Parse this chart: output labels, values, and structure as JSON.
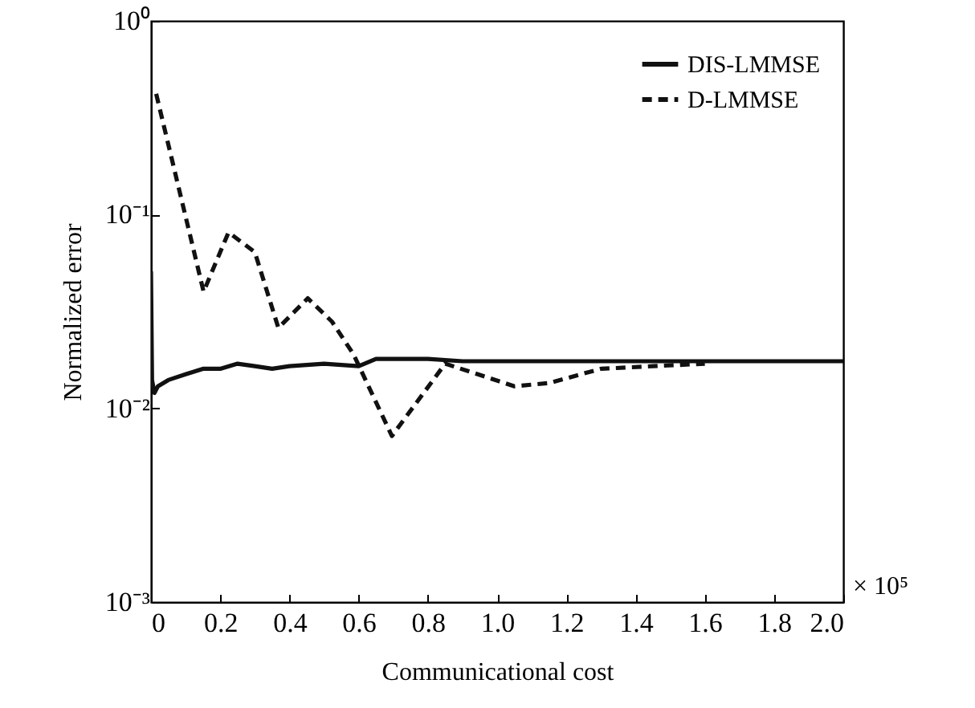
{
  "chart_data": {
    "type": "line",
    "xlabel": "Communicational cost",
    "ylabel": "Normalized error",
    "log": "y",
    "xlim": [
      0,
      2
    ],
    "ylim": [
      0.001,
      1
    ],
    "xticks": [
      0,
      0.2,
      0.4,
      0.6,
      0.8,
      {
        "value": 1,
        "label": "1.0"
      },
      1.2,
      1.4,
      1.6,
      1.8,
      {
        "value": 2,
        "label": "2.0"
      }
    ],
    "yticks": [
      {
        "value": 0.001,
        "label": "10⁻³"
      },
      {
        "value": 0.01,
        "label": "10⁻²"
      },
      {
        "value": 0.1,
        "label": "10⁻¹"
      },
      {
        "value": 1,
        "label": "10⁰"
      }
    ],
    "legend": "top right",
    "annotations": [
      "× 10⁵"
    ],
    "series": [
      {
        "name": "DIS-LMMSE",
        "color": "#111111",
        "line_style": "solid",
        "x": [
          0,
          0.003,
          0.01,
          0.02,
          0.05,
          0.1,
          0.15,
          0.2,
          0.25,
          0.3,
          0.35,
          0.4,
          0.5,
          0.6,
          0.65,
          0.7,
          0.8,
          0.9,
          1.0,
          1.2,
          1.4,
          1.6,
          1.8,
          2.0
        ],
        "values": [
          0.051,
          0.014,
          0.012,
          0.013,
          0.014,
          0.015,
          0.016,
          0.016,
          0.017,
          0.0165,
          0.016,
          0.0165,
          0.017,
          0.0165,
          0.018,
          0.018,
          0.018,
          0.0175,
          0.0175,
          0.0175,
          0.0175,
          0.0175,
          0.0175,
          0.0175
        ]
      },
      {
        "name": "D-LMMSE",
        "color": "#111111",
        "line_style": "dashed",
        "x": [
          0.015,
          0.152,
          0.224,
          0.3,
          0.368,
          0.453,
          0.523,
          0.585,
          0.696,
          0.85,
          1.05,
          1.15,
          1.3,
          1.45,
          1.6
        ],
        "values": [
          0.42,
          0.04,
          0.081,
          0.064,
          0.026,
          0.037,
          0.028,
          0.019,
          0.0072,
          0.017,
          0.013,
          0.0135,
          0.016,
          0.0165,
          0.017
        ]
      }
    ]
  }
}
